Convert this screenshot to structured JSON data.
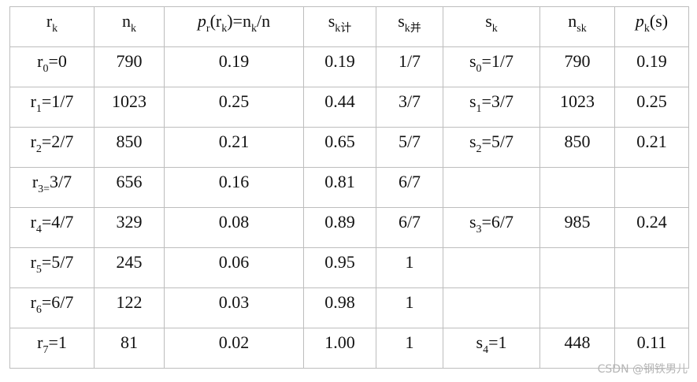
{
  "table": {
    "header": [
      [
        {
          "t": "r"
        },
        {
          "sub": "k"
        }
      ],
      [
        {
          "t": "n"
        },
        {
          "sub": "k"
        }
      ],
      [
        {
          "italic": "p"
        },
        {
          "sub": "r"
        },
        {
          "t": "(r"
        },
        {
          "sub": "k"
        },
        {
          "t": ")=n"
        },
        {
          "sub": "k"
        },
        {
          "t": "/n"
        }
      ],
      [
        {
          "t": "s"
        },
        {
          "sub": "k计"
        }
      ],
      [
        {
          "t": "s"
        },
        {
          "sub": "k并"
        }
      ],
      [
        {
          "t": "s"
        },
        {
          "sub": "k"
        }
      ],
      [
        {
          "t": "n"
        },
        {
          "sub": "sk"
        }
      ],
      [
        {
          "italic": "p"
        },
        {
          "sub": "k"
        },
        {
          "t": "(s)"
        }
      ]
    ],
    "rows": [
      [
        [
          {
            "t": "r"
          },
          {
            "sub": "0"
          },
          {
            "t": "=0"
          }
        ],
        "790",
        "0.19",
        "0.19",
        "1/7",
        [
          {
            "t": "s"
          },
          {
            "sub": "0"
          },
          {
            "t": "=1/7"
          }
        ],
        "790",
        "0.19"
      ],
      [
        [
          {
            "t": "r"
          },
          {
            "sub": "1"
          },
          {
            "t": "=1/7"
          }
        ],
        "1023",
        "0.25",
        "0.44",
        "3/7",
        [
          {
            "t": "s"
          },
          {
            "sub": "1"
          },
          {
            "t": "=3/7"
          }
        ],
        "1023",
        "0.25"
      ],
      [
        [
          {
            "t": "r"
          },
          {
            "sub": "2"
          },
          {
            "t": "=2/7"
          }
        ],
        "850",
        "0.21",
        "0.65",
        "5/7",
        [
          {
            "t": "s"
          },
          {
            "sub": "2"
          },
          {
            "t": "=5/7"
          }
        ],
        "850",
        "0.21"
      ],
      [
        [
          {
            "t": "r"
          },
          {
            "sub": "3="
          },
          {
            "t": "3/7"
          }
        ],
        "656",
        "0.16",
        "0.81",
        "6/7",
        null,
        null,
        null
      ],
      [
        [
          {
            "t": "r"
          },
          {
            "sub": "4"
          },
          {
            "t": "=4/7"
          }
        ],
        "329",
        "0.08",
        "0.89",
        "6/7",
        [
          {
            "t": "s"
          },
          {
            "sub": "3"
          },
          {
            "t": "=6/7"
          }
        ],
        "985",
        "0.24"
      ],
      [
        [
          {
            "t": "r"
          },
          {
            "sub": "5"
          },
          {
            "t": "=5/7"
          }
        ],
        "245",
        "0.06",
        "0.95",
        "1",
        null,
        null,
        null
      ],
      [
        [
          {
            "t": "r"
          },
          {
            "sub": "6"
          },
          {
            "t": "=6/7"
          }
        ],
        "122",
        "0.03",
        "0.98",
        "1",
        null,
        null,
        null
      ],
      [
        [
          {
            "t": "r"
          },
          {
            "sub": "7"
          },
          {
            "t": "=1"
          }
        ],
        "81",
        "0.02",
        "1.00",
        "1",
        [
          {
            "t": "s"
          },
          {
            "sub": "4"
          },
          {
            "t": "=1"
          }
        ],
        "448",
        "0.11"
      ]
    ]
  },
  "watermark": "CSDN @钢铁男儿"
}
